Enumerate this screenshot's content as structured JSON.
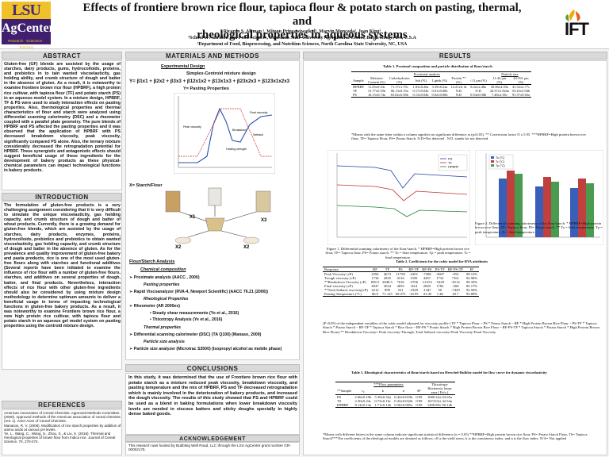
{
  "header": {
    "logo_left": {
      "line1": "LSU",
      "line2": "AgCenter",
      "line3": "Research · Extension · Teaching"
    },
    "title_line1": "Effects of frontiere brown rice flour, tapioca flour & potato starch on pasting, thermal, and",
    "title_line2": "rheological properties in aqueous systems",
    "authors": "Ricardo S. Aleman ¹, Witoon Prinyawiwatkul¹, Marvin Moncada², Joan King¹",
    "affil1": "¹School of Nutrition and Food Sciences, Louisiana State University Agricultural Center, Baton Rouge, LA, U.S.A",
    "affil2": "²Department of Food, Bioprocessing, and Nutrition Sciences, North Carolina State University, NC, USA",
    "logo_right": "IFT"
  },
  "abstract": {
    "heading": "ABSTRACT",
    "text": "Gluten-free (GF) blends are assisted by the usage of starches, dairy products, gums, hydrocolloids, proteins, and prebiotics in to tain wanted viscoelasticity, gas holding ability, and crumb structure of dough and batter in the absence of gluten. As a result, it is noteworthy to examine frontiere brown rice flour (HPBRF), a high protein rice cultivar, with tapioca flour (TF) and potato starch (PS) in an aqueous model system. In a mixture design, HPBRF, TF & PS were used to study interaction effects on pasting properties. Also, thermological properties and thermal characteristics of flour and starch were analyzed using differential scanning calorimetry (DSC) and a rheometer coupled with a parallel plate geometry. The pure blends of HPBRF and PS affected the pasting properties and it was observed that the application of HPBRF with PS decreased breakdown viscosity, peak viscosity, significantly compared PS alone. Also, the ternary mixture considerably decreased the retrogradation potential for HPBRF. These synergistic and antagonistic effects should suggest beneficial usage of these ingredients for the development of bakery products as these physical-chemical parameters can impact technological functions in bakery products."
  },
  "introduction": {
    "heading": "INTRODUCTION",
    "text": "The formulation of gluten-free products is a very challenging assignment considering that it is very difficult to simulate the unique viscoelasticity, gas holding capacity, and crumb structure of dough and batter of wheat products. Currently, there is a growing demand for gluten-free blends, which are assisted by the usage of starches, dairy products, enzymes, proteins, hydrocolloids, prebiotics and prebiotics to obtain wanted viscoelasticity, gas holding capacity, and crumb structure of dough and batter in the absence of gluten. As for the prevalence and quality improvement of gluten-free bakery and pasta products, rice is one of the most used gluten-free flours along with starches and functional additives (Several reports have been initiated to examine the influence of rice flour with a number of gluten-free flours, starches, and additives on several properties of dough, batter, and final products. Nevertheless, interaction effects of rice flour with other gluten-free ingredients should also be considered by using mixture design methodology to determine optimum amounts to deliver a beneficial usage in terms of impacting technological functions in gluten-free bakery products. As a result, it was noteworthy to examine Frontiere brown rice flour, a new high protein rice cultivar, with tapioca flour and potato starch in an aqueous gel model system on pasting properties using the centroid mixture design."
  },
  "references": {
    "heading": "REFERENCES",
    "items": [
      "American Association of Cereal Chemists. Approved Methods Committee. (2000). Approved methods of the American association of cereal chemists (Vol. 1). Amer Assn of Cereal Chemists.",
      "Manasos, R. V. (2008). Modification of rice starch properties by addition of amino acids at various pH levels.",
      "Ye, L., Wang, C., Wang, S., Zhou, S., & Liu, X. (2016). Thermal and rheological properties of brown flour from Indica rice. Journal of Cereal Science, 70, 270-274."
    ]
  },
  "methods": {
    "heading": "MATERIALS  AND  METHODS",
    "exp_design": "Experimental Design",
    "simplex": "Simplex-Centroid mixture design",
    "equation": "Y= β1x1 + β2x2 + β3x3 + β12x1x2 + β13x1x3 + β23x2x3 + β123x1x2x3",
    "y_label": "Y= Pasting Properties",
    "x_label": "X= Starch/Flour",
    "x_items": [
      "X1",
      "X2",
      "X2",
      "X3"
    ],
    "curve_labels": [
      "Peak viscosity",
      "Breakdown",
      "Holding strength",
      "Final viscosity",
      "Setback"
    ],
    "flour_starch_analysis": "Flour/Starch Analysis",
    "chem_comp": "Chemical composition",
    "proximate": "Proximate analysis (AACC , 2000)",
    "pasting_props": "Pasting properties",
    "rva": "Rapid Viscoanalyzer (RVA-4, Newport Scientific) (AACC 76.21 (2000))",
    "rheo_props": "Rheological Properties",
    "rheometer": "Rheometer (AR 2000ex)",
    "steady": "Steady shear measurements (Ye et al., 2016)",
    "thixo": "Thixotropy Analysis (Ye et al., 2016)",
    "thermal_props": "Thermal properties",
    "dsc": "Differential scanning calorimeter (DSC) (TA Q100) (Manaso, 2009)",
    "particle_size": "Particle size analysis",
    "particle_analyzer": "Particle size analyzer (Microtrac S3500) (Isopropyl alcohol as mobile phase)"
  },
  "conclusions": {
    "heading": "CONCLUSIONS",
    "text": "In this study, it was determined that the use of Frontiere brown rice flour with potato starch as a mixture reduced peak viscosity, breakdown viscosity, and pasting temperature and the mix of HPBRF, PS and TF decreased retrogradation which is mainly involved in the deterioration of bakery products, and increased the dough viscosity. The results of this study showed that PS and HPBRF could be used as a blend in baking formulations when lower breakdown viscosity levels are needed in viscous batters and sticky doughs specially in highly dense baked goods."
  },
  "acknowledgement": {
    "heading": "ACKNOWLEDGEMENT",
    "text": "This research was funded by Bubbling Well Road, LLC through the LSU AgCenter grant number GR-00002175."
  },
  "results": {
    "heading": "RESULTS",
    "table1": {
      "caption": "Table 1. Proximal composition and particle distribution of flour/starch",
      "group1": "Proximate analysis",
      "group2": "Particle size",
      "headers": [
        "Sample",
        "Moisture Content (%)",
        "Carbohydrates (%)",
        "Ash (%)",
        "Lipids (%)",
        "Protein ** (%)",
        "<11 μm (%)",
        "11-44 μm (%)",
        "44-591 μm (%)"
      ],
      "rows": [
        [
          "HPBRF",
          "11.05±0.54c",
          "71.17±1.79c",
          "1.83±0.26a",
          "3.39±0.22a",
          "12.21±0.14",
          "8.42±2.48a",
          "50.06±4.39a",
          "41.52±2.77c"
        ],
        [
          "TF",
          "13.77±0.39b",
          "86.13±0.19a",
          "0.17±0.02b",
          "0.01±0.00b",
          "N.D",
          "N.D",
          "44.57±5.82ab",
          "55.43±5.04b"
        ],
        [
          "PS",
          "16.15±0.74a",
          "83.02±0.58b",
          "0.13±0.04b",
          "0.02±0.00b",
          "N.D",
          "0.94±0.08b",
          "7.48±2.58c",
          "91.57±0.63a"
        ]
      ],
      "note": "*Means with the same letter within a column signifies no significant difference at (p≤0.05). ** Conversion factor N x 5.95. ***HPBRF=High protein brown rice flour, TF= Tapioca Flour, PS= Potato Starch. N.D=Not detected . N.D. stands for not detected."
    },
    "figure1_caption": "Figure 1. Differential scanning calorimetry of the flour/starch. * HPBRF=High protein brown rice flour, TF= Tapioca flour, PS= Potato starch. ** To = Start temperature, Tp = peak temperature, Tc = final temperature.",
    "figure2_caption": "Figure 2. Differential scanning calorimetry of the flour/starch. * HPBRF=High protein brown rice flour, TF= Tapioca flour, PS= Potato starch. ** To = Start temperature, Tp = peak temperature, Tc = final temperature.",
    "fig1_legend": [
      "PS",
      "TF",
      "HPBRF"
    ],
    "fig2_legend": [
      "To (°C)",
      "Tc (°C)",
      "Tp (°C)"
    ],
    "table2": {
      "caption": "Table 2. Coefficients for the cubic model for RVA attributes",
      "headers": [
        "Response",
        "RF",
        "TF",
        "PS",
        "RF-TF",
        "RF-PS",
        "PS-TF",
        "RF-PS-TF",
        "R²"
      ],
      "rows": [
        [
          "Peak Viscosity (cP)",
          "2594",
          "4673",
          "11758",
          "-2201",
          "-7286",
          "-3697",
          "-952",
          "99.12%"
        ],
        [
          "Trough viscosity (cP)",
          "1736",
          "2825",
          "4134",
          "1509",
          "4267",
          "1732",
          "7161",
          "92.96%"
        ],
        [
          "**Breakdown Viscosity (cP)",
          "858.5",
          "2848.5",
          "7616",
          "-3706",
          "-11553",
          "-5429",
          "-8114",
          "99.33%"
        ],
        [
          "Final viscosity (cP)",
          "4947",
          "3024",
          "4655",
          "-824",
          "2820",
          "1782",
          "-268",
          "85.17%"
        ],
        [
          "**Total Setback viscosity(cP)",
          "3212",
          "899",
          "521",
          "-2329",
          "-1447",
          "50",
          "-7429",
          "92.56%"
        ],
        [
          "Pasting Temperature (°C)",
          "86.9",
          "71.125",
          "69.475",
          "-16.95",
          "-23.45",
          "1.46",
          "20.7",
          "95.89%"
        ]
      ],
      "note": "(P<0.05) of the independent variables of the cubic model adjusted for viscosity profile ( TF * Tapioca Flour ~ PS * Potato Starch ~ RF * High Protein Brown Rice Flour ~ PS-TF * Tapioca Starch * Potato Starch ~ RF-TF * Tapioca Starch * Rice flour ~ RF-PS * Potato Starch * High Protein Brown Rice Flour ~ RF-PS-TF * Tapioca Starch * Potato Starch * High Protein Brown Rice Flour).** Breakdown Viscosity= Peak viscosity-Through, Total Setback viscosity=Peak Viscosity-Final Viscosity"
    },
    "table3": {
      "caption": "Table 3. Rheological characteristics of flour/starch based on Herschel-Bulkley model for flow curve for dynamic viscoelasticity",
      "group1": "***Flow parameters",
      "group2": "Thixotropy",
      "headers": [
        "**Sample",
        "τ₀",
        "k",
        "n",
        "R²",
        "Hysteresis loops area ( Pa/s )"
      ],
      "rows": [
        [
          "PS",
          "2.66±0.19b",
          "5.39±0.32a",
          "0.42±0.023b",
          "0.99",
          "1680.34± 63.65a"
        ],
        [
          "TS",
          "2.30±0.24c",
          "0.73±0.16c",
          "0.43±0.032b",
          "0.99",
          "1673.02± 42.54a"
        ],
        [
          "HPBRF",
          "8.14±0.14a",
          "1.71±0.12b",
          "0.50±0.005a",
          "0.99",
          "1288.98± 90.14b"
        ]
      ],
      "note": "*Means with different letters in the same column indicate significant statistical difference (α = 0.05) **HPBRF=High protein brown rice flour, PS= Potato Starch Flour, TS= Tapioca Starch***The coefficients of the rheological models are denoted as follows: τ0 is the yield stress, k is the consistency index, and n is the flow index. N/A= Not applied"
    }
  }
}
